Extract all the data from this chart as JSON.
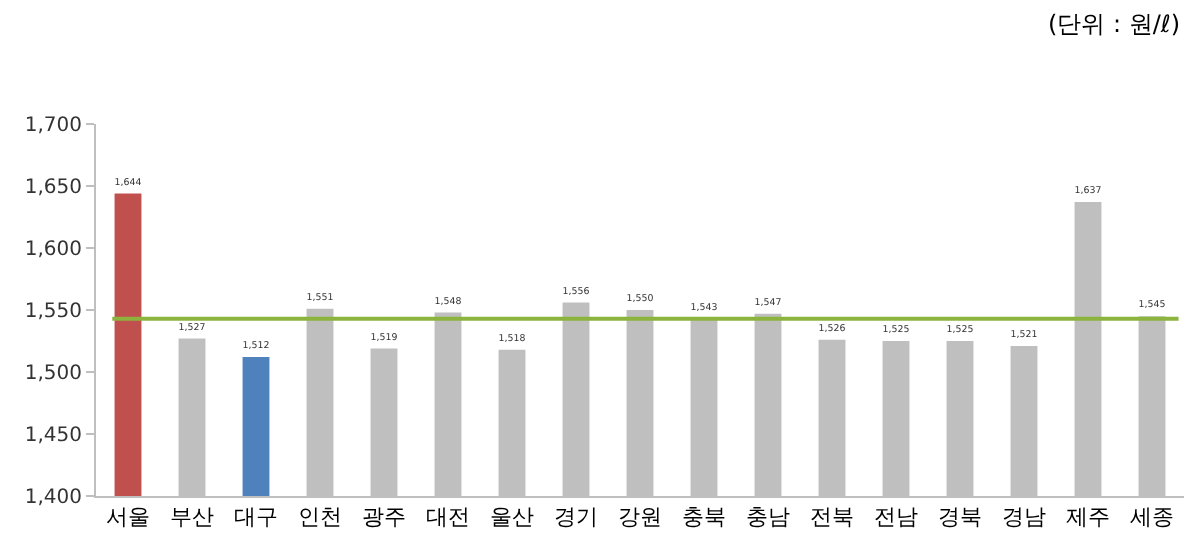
{
  "chart_data": {
    "type": "bar",
    "categories": [
      "서울",
      "부산",
      "대구",
      "인천",
      "광주",
      "대전",
      "울산",
      "경기",
      "강원",
      "충북",
      "충남",
      "전북",
      "전남",
      "경북",
      "경남",
      "제주",
      "세종"
    ],
    "values": [
      1644,
      1527,
      1512,
      1551,
      1519,
      1548,
      1518,
      1556,
      1550,
      1543,
      1547,
      1526,
      1525,
      1525,
      1521,
      1637,
      1545
    ],
    "colors": [
      "#c0504d",
      "#bfbfbf",
      "#4f81bd",
      "#bfbfbf",
      "#bfbfbf",
      "#bfbfbf",
      "#bfbfbf",
      "#bfbfbf",
      "#bfbfbf",
      "#bfbfbf",
      "#bfbfbf",
      "#bfbfbf",
      "#bfbfbf",
      "#bfbfbf",
      "#bfbfbf",
      "#bfbfbf",
      "#bfbfbf"
    ],
    "ylim": [
      1400,
      1700
    ],
    "yticks": [
      {
        "value": 1400,
        "label": "1,400"
      },
      {
        "value": 1450,
        "label": "1,450"
      },
      {
        "value": 1500,
        "label": "1,500"
      },
      {
        "value": 1550,
        "label": "1,550"
      },
      {
        "value": 1600,
        "label": "1,600"
      },
      {
        "value": 1650,
        "label": "1,650"
      },
      {
        "value": 1700,
        "label": "1,700"
      }
    ],
    "value_labels": [
      "1,644",
      "1,527",
      "1,512",
      "1,551",
      "1,519",
      "1,548",
      "1,518",
      "1,556",
      "1,550",
      "1,543",
      "1,547",
      "1,526",
      "1,525",
      "1,525",
      "1,521",
      "1,637",
      "1,545"
    ],
    "ref_lines": [
      {
        "axis": "y",
        "value": 1543,
        "color": "#8db33f"
      }
    ],
    "annotations": [
      "(단위 : 원/ℓ)"
    ]
  }
}
